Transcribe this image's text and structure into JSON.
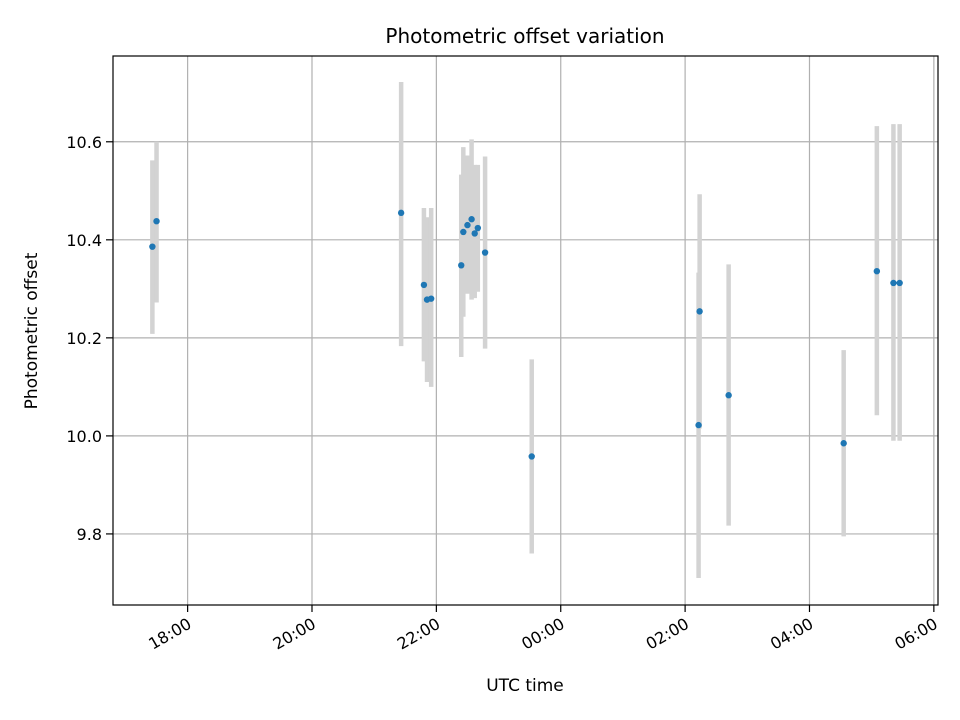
{
  "chart_data": {
    "type": "scatter",
    "title": "Photometric offset variation",
    "xlabel": "UTC time",
    "ylabel": "Photometric offset",
    "grid": true,
    "x_axis": {
      "ticks": [
        "18:00",
        "20:00",
        "22:00",
        "00:00",
        "02:00",
        "04:00",
        "06:00"
      ],
      "range": [
        "16:48",
        "06:04"
      ]
    },
    "y_axis": {
      "ticks": [
        "9.8",
        "10.0",
        "10.2",
        "10.4",
        "10.6"
      ],
      "range": [
        9.655,
        10.775
      ]
    },
    "colors": {
      "point": "#1f77b4",
      "errorbar": "#d3d3d3",
      "grid": "#b0b0b0"
    },
    "points": [
      {
        "time": "17:26",
        "offset": 10.386,
        "err_low": 10.208,
        "err_high": 10.562
      },
      {
        "time": "17:30",
        "offset": 10.438,
        "err_low": 10.272,
        "err_high": 10.6
      },
      {
        "time": "21:26",
        "offset": 10.455,
        "err_low": 10.183,
        "err_high": 10.722
      },
      {
        "time": "21:48",
        "offset": 10.308,
        "err_low": 10.152,
        "err_high": 10.465
      },
      {
        "time": "21:51",
        "offset": 10.278,
        "err_low": 10.11,
        "err_high": 10.446
      },
      {
        "time": "21:55",
        "offset": 10.28,
        "err_low": 10.1,
        "err_high": 10.465
      },
      {
        "time": "22:24",
        "offset": 10.348,
        "err_low": 10.161,
        "err_high": 10.533
      },
      {
        "time": "22:26",
        "offset": 10.416,
        "err_low": 10.243,
        "err_high": 10.589
      },
      {
        "time": "22:30",
        "offset": 10.43,
        "err_low": 10.29,
        "err_high": 10.572
      },
      {
        "time": "22:34",
        "offset": 10.442,
        "err_low": 10.278,
        "err_high": 10.605
      },
      {
        "time": "22:37",
        "offset": 10.413,
        "err_low": 10.281,
        "err_high": 10.553
      },
      {
        "time": "22:40",
        "offset": 10.424,
        "err_low": 10.294,
        "err_high": 10.553
      },
      {
        "time": "22:47",
        "offset": 10.374,
        "err_low": 10.178,
        "err_high": 10.57
      },
      {
        "time": "23:32",
        "offset": 9.958,
        "err_low": 9.76,
        "err_high": 10.156
      },
      {
        "time": "02:13",
        "offset": 10.022,
        "err_low": 9.71,
        "err_high": 10.333
      },
      {
        "time": "02:14",
        "offset": 10.254,
        "err_low": 10.015,
        "err_high": 10.493
      },
      {
        "time": "02:42",
        "offset": 10.083,
        "err_low": 9.817,
        "err_high": 10.35
      },
      {
        "time": "04:33",
        "offset": 9.985,
        "err_low": 9.795,
        "err_high": 10.175
      },
      {
        "time": "05:05",
        "offset": 10.336,
        "err_low": 10.042,
        "err_high": 10.632
      },
      {
        "time": "05:21",
        "offset": 10.312,
        "err_low": 9.99,
        "err_high": 10.636
      },
      {
        "time": "05:27",
        "offset": 10.312,
        "err_low": 9.99,
        "err_high": 10.636
      }
    ]
  }
}
